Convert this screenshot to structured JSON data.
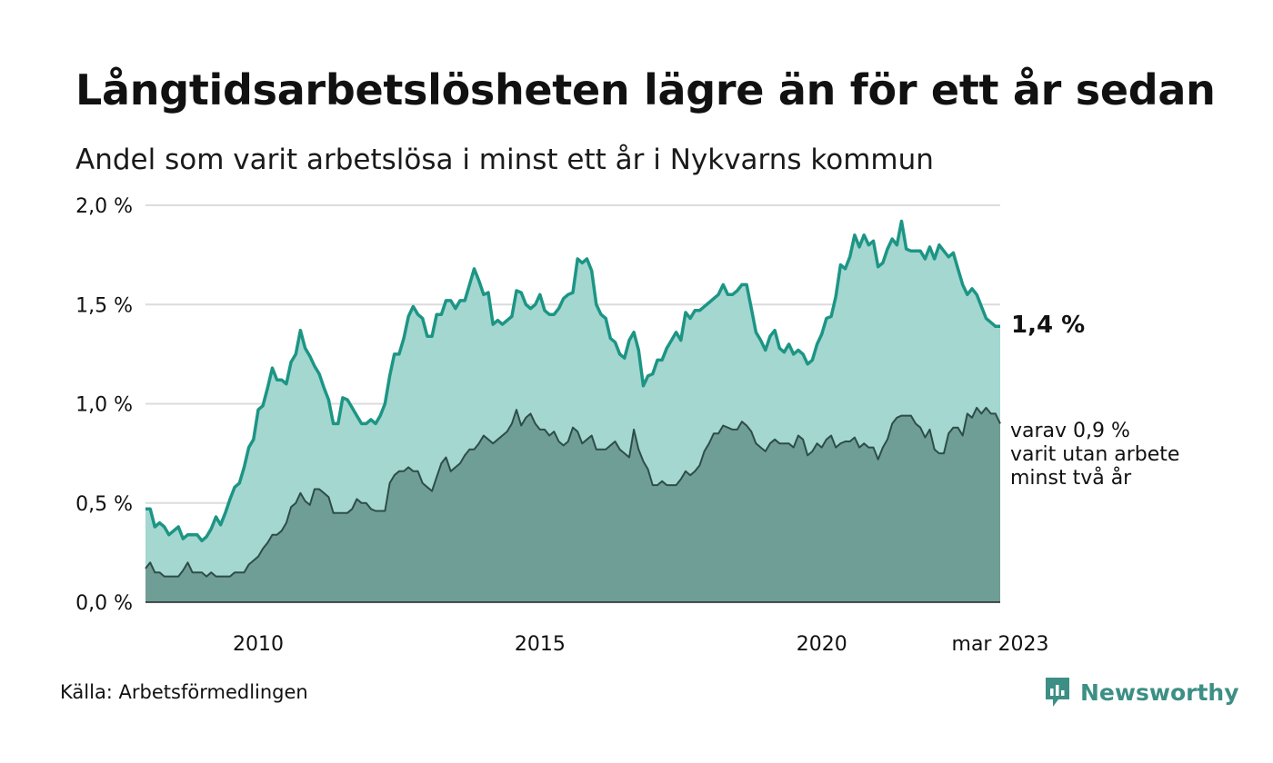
{
  "title": "Långtidsarbetslösheten lägre än för ett år sedan",
  "subtitle": "Andel som varit arbetslösa i minst ett år i Nykvarns kommun",
  "source": "Källa: Arbetsförmedlingen",
  "brand": "Newsworthy",
  "end_value_label": "1,4 %",
  "sub_series_label": [
    "varav 0,9 %",
    "varit utan arbete",
    "minst två år"
  ],
  "colors": {
    "total_fill": "#a3d7d0",
    "total_line": "#1d9585",
    "sub_fill": "#6f9e96",
    "sub_line": "#2e4d48",
    "grid": "#dcdcdc",
    "brand": "#3d8f85"
  },
  "chart_data": {
    "type": "area",
    "x_start": "2008-01",
    "x_end": "2023-03",
    "frequency": "monthly",
    "ylim": [
      0,
      2.0
    ],
    "y_ticks": [
      0,
      0.5,
      1.0,
      1.5,
      2.0
    ],
    "y_tick_labels": [
      "0,0 %",
      "0,5 %",
      "1,0 %",
      "1,5 %",
      "2,0 %"
    ],
    "x_ticks": [
      2010,
      2015,
      2020
    ],
    "x_tick_labels": [
      "2010",
      "2015",
      "2020",
      "mar 2023"
    ],
    "grid": true,
    "series": [
      {
        "values": [
          0.47,
          0.47,
          0.38,
          0.4,
          0.38,
          0.34,
          0.36,
          0.38,
          0.32,
          0.34,
          0.34,
          0.34,
          0.31,
          0.33,
          0.37,
          0.43,
          0.39,
          0.45,
          0.52,
          0.58,
          0.6,
          0.68,
          0.78,
          0.82,
          0.97,
          0.99,
          1.08,
          1.18,
          1.12,
          1.12,
          1.1,
          1.21,
          1.25,
          1.37,
          1.28,
          1.24,
          1.19,
          1.15,
          1.08,
          1.02,
          0.9,
          0.9,
          1.03,
          1.02,
          0.98,
          0.94,
          0.9,
          0.9,
          0.92,
          0.9,
          0.94,
          1.0,
          1.14,
          1.25,
          1.25,
          1.33,
          1.44,
          1.49,
          1.45,
          1.43,
          1.34,
          1.34,
          1.45,
          1.45,
          1.52,
          1.52,
          1.48,
          1.52,
          1.52,
          1.6,
          1.68,
          1.62,
          1.55,
          1.56,
          1.4,
          1.42,
          1.4,
          1.42,
          1.44,
          1.57,
          1.56,
          1.5,
          1.48,
          1.5,
          1.55,
          1.47,
          1.45,
          1.45,
          1.48,
          1.53,
          1.55,
          1.56,
          1.73,
          1.71,
          1.73,
          1.67,
          1.5,
          1.45,
          1.43,
          1.33,
          1.31,
          1.25,
          1.23,
          1.32,
          1.36,
          1.27,
          1.09,
          1.14,
          1.15,
          1.22,
          1.22,
          1.28,
          1.32,
          1.36,
          1.32,
          1.46,
          1.43,
          1.47,
          1.47,
          1.49,
          1.51,
          1.53,
          1.55,
          1.6,
          1.55,
          1.55,
          1.57,
          1.6,
          1.6,
          1.48,
          1.36,
          1.32,
          1.27,
          1.34,
          1.37,
          1.28,
          1.26,
          1.3,
          1.25,
          1.27,
          1.25,
          1.2,
          1.22,
          1.3,
          1.35,
          1.43,
          1.44,
          1.54,
          1.7,
          1.68,
          1.74,
          1.85,
          1.79,
          1.85,
          1.8,
          1.82,
          1.69,
          1.71,
          1.78,
          1.83,
          1.8,
          1.92,
          1.78,
          1.77,
          1.77,
          1.77,
          1.73,
          1.79,
          1.73,
          1.8,
          1.77,
          1.74,
          1.76,
          1.68,
          1.6,
          1.55,
          1.58,
          1.55,
          1.49,
          1.43,
          1.41,
          1.39,
          1.39
        ]
      },
      {
        "values": [
          0.17,
          0.2,
          0.15,
          0.15,
          0.13,
          0.13,
          0.13,
          0.13,
          0.16,
          0.2,
          0.15,
          0.15,
          0.15,
          0.13,
          0.15,
          0.13,
          0.13,
          0.13,
          0.13,
          0.15,
          0.15,
          0.15,
          0.19,
          0.21,
          0.23,
          0.27,
          0.3,
          0.34,
          0.34,
          0.36,
          0.4,
          0.48,
          0.5,
          0.55,
          0.51,
          0.49,
          0.57,
          0.57,
          0.55,
          0.53,
          0.45,
          0.45,
          0.45,
          0.45,
          0.47,
          0.52,
          0.5,
          0.5,
          0.47,
          0.46,
          0.46,
          0.46,
          0.6,
          0.64,
          0.66,
          0.66,
          0.68,
          0.66,
          0.66,
          0.6,
          0.58,
          0.56,
          0.63,
          0.7,
          0.73,
          0.66,
          0.68,
          0.7,
          0.74,
          0.77,
          0.77,
          0.8,
          0.84,
          0.82,
          0.8,
          0.82,
          0.84,
          0.86,
          0.9,
          0.97,
          0.89,
          0.93,
          0.95,
          0.9,
          0.87,
          0.87,
          0.84,
          0.86,
          0.81,
          0.79,
          0.81,
          0.88,
          0.86,
          0.8,
          0.82,
          0.84,
          0.77,
          0.77,
          0.77,
          0.79,
          0.81,
          0.77,
          0.75,
          0.73,
          0.87,
          0.77,
          0.71,
          0.67,
          0.59,
          0.59,
          0.61,
          0.59,
          0.59,
          0.59,
          0.62,
          0.66,
          0.64,
          0.66,
          0.69,
          0.76,
          0.8,
          0.85,
          0.85,
          0.89,
          0.88,
          0.87,
          0.87,
          0.91,
          0.89,
          0.86,
          0.8,
          0.78,
          0.76,
          0.8,
          0.82,
          0.8,
          0.8,
          0.8,
          0.78,
          0.84,
          0.82,
          0.74,
          0.76,
          0.8,
          0.78,
          0.82,
          0.84,
          0.78,
          0.8,
          0.81,
          0.81,
          0.83,
          0.78,
          0.8,
          0.78,
          0.78,
          0.72,
          0.78,
          0.82,
          0.9,
          0.93,
          0.94,
          0.94,
          0.94,
          0.9,
          0.88,
          0.83,
          0.87,
          0.77,
          0.75,
          0.75,
          0.85,
          0.88,
          0.88,
          0.84,
          0.95,
          0.93,
          0.98,
          0.95,
          0.98,
          0.95,
          0.95,
          0.9
        ]
      }
    ]
  }
}
